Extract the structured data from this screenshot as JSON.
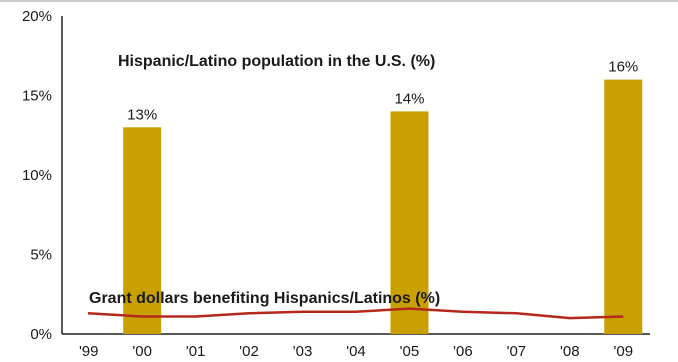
{
  "chart_data": {
    "type": "bar",
    "categories": [
      "'99",
      "'00",
      "'01",
      "'02",
      "'03",
      "'04",
      "'05",
      "'06",
      "'07",
      "'08",
      "'09"
    ],
    "y_ticks": [
      "0%",
      "5%",
      "10%",
      "15%",
      "20%"
    ],
    "ylim": [
      0,
      20
    ],
    "grid": false,
    "series": [
      {
        "name": "Hispanic/Latino population in the U.S. (%)",
        "type": "bar",
        "color": "#c9a000",
        "points": [
          {
            "category": "'00",
            "value": 13,
            "label": "13%"
          },
          {
            "category": "'05",
            "value": 14,
            "label": "14%"
          },
          {
            "category": "'09",
            "value": 16,
            "label": "16%"
          }
        ]
      },
      {
        "name": "Grant dollars benefiting Hispanics/Latinos (%)",
        "type": "line",
        "color": "#b5281c",
        "values": [
          1.3,
          1.1,
          1.1,
          1.3,
          1.4,
          1.4,
          1.6,
          1.4,
          1.3,
          1.0,
          1.1
        ]
      }
    ]
  }
}
